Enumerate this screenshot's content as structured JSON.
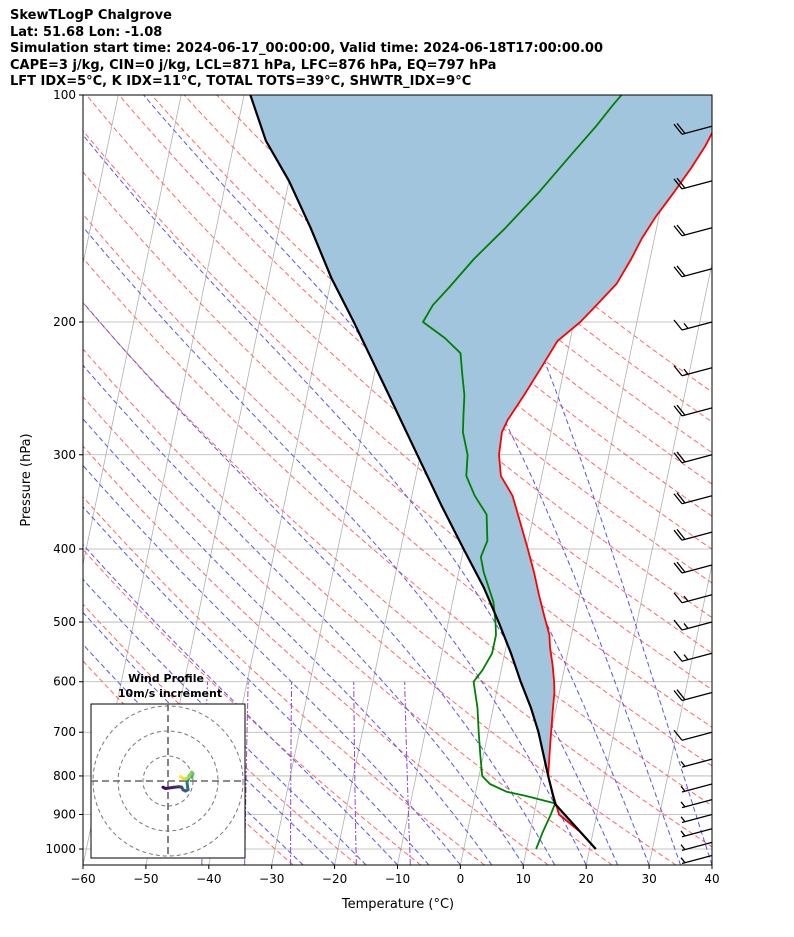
{
  "header": {
    "lines": [
      "SkewTLogP Chalgrove",
      "Lat: 51.68   Lon: -1.08",
      "Simulation start time: 2024-06-17_00:00:00, Valid time: 2024-06-18T17:00:00.00",
      "CAPE=3 j/kg, CIN=0 j/kg, LCL=871 hPa, LFC=876 hPa, EQ=797 hPa",
      "LFT IDX=5°C, K IDX=11°C, TOTAL TOTS=39°C, SHWTR_IDX=9°C"
    ]
  },
  "chart_data": [
    {
      "type": "line",
      "title": "",
      "xlabel": "Temperature (°C)",
      "ylabel": "Pressure (hPa)",
      "x_ticks": [
        -60,
        -50,
        -40,
        -30,
        -20,
        -10,
        0,
        10,
        20,
        30,
        40
      ],
      "x_tick_labels": [
        "−60",
        "−50",
        "−40",
        "−30",
        "−20",
        "−10",
        "0",
        "10",
        "20",
        "30",
        "40"
      ],
      "y_ticks": [
        100,
        200,
        300,
        400,
        500,
        600,
        700,
        800,
        900,
        1000
      ],
      "y_tick_labels": [
        "100",
        "200",
        "300",
        "400",
        "500",
        "600",
        "700",
        "800",
        "900",
        "1000"
      ],
      "xlim": [
        -60,
        40
      ],
      "ylim": [
        1050,
        100
      ],
      "y_scale": "log",
      "grid": true,
      "colors": {
        "temperature": "#ff0000",
        "dewpoint": "#008000",
        "parcel": "#000000",
        "cape_fill": "#a2c5de",
        "isotherm": "#b0b0b0",
        "dry_adiabat": "#ff6666",
        "moist_adiabat": "#5555ee",
        "mixing_ratio": "#9944cc"
      },
      "series": [
        {
          "key": "temperature",
          "points": [
            [
              21,
              1000
            ],
            [
              18,
              950
            ],
            [
              14,
              900
            ],
            [
              12.5,
              850
            ],
            [
              11,
              800
            ],
            [
              10.5,
              750
            ],
            [
              10,
              700
            ],
            [
              9.5,
              650
            ],
            [
              9.2,
              620
            ],
            [
              8.8,
              600
            ],
            [
              8,
              570
            ],
            [
              7,
              540
            ],
            [
              6.5,
              520
            ],
            [
              5,
              490
            ],
            [
              3.5,
              460
            ],
            [
              2,
              430
            ],
            [
              0.2,
              400
            ],
            [
              -1.8,
              370
            ],
            [
              -4,
              340
            ],
            [
              -6.5,
              320
            ],
            [
              -7.5,
              300
            ],
            [
              -7.8,
              280
            ],
            [
              -7.3,
              270
            ],
            [
              -5.5,
              250
            ],
            [
              -3.7,
              230
            ],
            [
              -2,
              212
            ],
            [
              1,
              200
            ],
            [
              3,
              190
            ],
            [
              5.5,
              178
            ],
            [
              7,
              165
            ],
            [
              8,
              155
            ],
            [
              9.5,
              145
            ],
            [
              11.5,
              135
            ],
            [
              13.5,
              125
            ],
            [
              15,
              117
            ],
            [
              16,
              110
            ],
            [
              17.5,
              103
            ],
            [
              18,
              100
            ]
          ]
        },
        {
          "key": "dewpoint",
          "points": [
            [
              11.5,
              1000
            ],
            [
              12,
              950
            ],
            [
              12.7,
              900
            ],
            [
              13,
              870
            ],
            [
              8,
              850
            ],
            [
              5,
              840
            ],
            [
              2,
              820
            ],
            [
              0.5,
              800
            ],
            [
              -0.5,
              750
            ],
            [
              -1.5,
              700
            ],
            [
              -2.5,
              650
            ],
            [
              -4,
              600
            ],
            [
              -3,
              580
            ],
            [
              -2,
              550
            ],
            [
              -2,
              520
            ],
            [
              -2.5,
              500
            ],
            [
              -3.5,
              470
            ],
            [
              -6,
              430
            ],
            [
              -7,
              410
            ],
            [
              -6.5,
              390
            ],
            [
              -7.5,
              360
            ],
            [
              -10,
              340
            ],
            [
              -12,
              320
            ],
            [
              -12.5,
              300
            ],
            [
              -14,
              280
            ],
            [
              -14.5,
              265
            ],
            [
              -15,
              250
            ],
            [
              -16,
              235
            ],
            [
              -17,
              220
            ],
            [
              -20,
              210
            ],
            [
              -24,
              200
            ],
            [
              -23,
              190
            ],
            [
              -21,
              180
            ],
            [
              -18,
              165
            ],
            [
              -14,
              150
            ],
            [
              -10,
              135
            ],
            [
              -6,
              120
            ],
            [
              -3,
              110
            ],
            [
              -1,
              103
            ],
            [
              0,
              100
            ]
          ]
        },
        {
          "key": "parcel",
          "points": [
            [
              21,
              1000
            ],
            [
              13,
              871
            ],
            [
              11,
              800
            ],
            [
              8,
              700
            ],
            [
              6,
              650
            ],
            [
              3.5,
              600
            ],
            [
              1,
              550
            ],
            [
              -2,
              500
            ],
            [
              -5.5,
              450
            ],
            [
              -10,
              400
            ],
            [
              -15,
              350
            ],
            [
              -20.5,
              300
            ],
            [
              -27,
              250
            ],
            [
              -35,
              200
            ],
            [
              -40,
              175
            ],
            [
              -45,
              150
            ],
            [
              -50,
              130
            ],
            [
              -55,
              115
            ],
            [
              -59,
              100
            ]
          ]
        }
      ],
      "cape_fill_between": [
        "temperature",
        "parcel"
      ],
      "wind_barbs": {
        "pressures": [
          110,
          130,
          150,
          170,
          200,
          230,
          260,
          300,
          340,
          380,
          420,
          460,
          500,
          550,
          620,
          700,
          760,
          820,
          860,
          900,
          940,
          980,
          1020
        ],
        "speeds_kt": [
          20,
          20,
          20,
          20,
          15,
          15,
          20,
          20,
          20,
          20,
          20,
          15,
          15,
          15,
          20,
          10,
          5,
          5,
          5,
          5,
          5,
          5,
          5
        ]
      }
    },
    {
      "type": "line",
      "title": "Wind Profile",
      "subtitle": "10m/s increment",
      "ring_increment_ms": 10,
      "rings": [
        10,
        20,
        30
      ],
      "hodograph_points": [
        [
          -2,
          -2.5
        ],
        [
          -1,
          -3
        ],
        [
          0.5,
          -2.8
        ],
        [
          2.5,
          -2.5
        ],
        [
          4.5,
          -2.3
        ],
        [
          5.5,
          -2.5
        ],
        [
          6,
          -3.5
        ],
        [
          7,
          -4
        ],
        [
          8,
          -3.5
        ],
        [
          7.8,
          -2
        ],
        [
          7.6,
          -0.5
        ],
        [
          8,
          0.5
        ],
        [
          8.3,
          1.5
        ],
        [
          8.5,
          2.2
        ],
        [
          9,
          2
        ],
        [
          9.5,
          1.5
        ],
        [
          9.8,
          2.5
        ],
        [
          10,
          3
        ],
        [
          9.5,
          3.5
        ],
        [
          9,
          2.8
        ],
        [
          8.5,
          1.8
        ],
        [
          7.5,
          1
        ],
        [
          6.5,
          0.8
        ],
        [
          5.3,
          1.5
        ],
        [
          5,
          1.8
        ]
      ]
    }
  ]
}
